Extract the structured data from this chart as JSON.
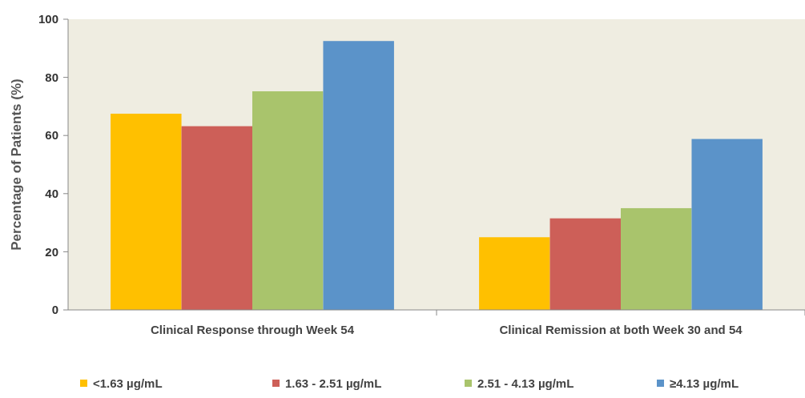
{
  "chart_data": {
    "type": "bar",
    "ylabel": "Percentage of Patients (%)",
    "categories": [
      "Clinical Response through Week 54",
      "Clinical Remission at both Week 30 and 54"
    ],
    "series": [
      {
        "name": "<1.63 µg/mL",
        "color": "#ffc000",
        "values": [
          67.5,
          25
        ]
      },
      {
        "name": "1.63 - 2.51 µg/mL",
        "color": "#cd5f58",
        "values": [
          63.2,
          31.5
        ]
      },
      {
        "name": "2.51 - 4.13 µg/mL",
        "color": "#a9c46c",
        "values": [
          75.2,
          35
        ]
      },
      {
        "name": "≥4.13 µg/mL",
        "color": "#5b93c9",
        "values": [
          92.5,
          58.8
        ]
      }
    ],
    "ylim": [
      0,
      100
    ],
    "yticks": [
      0,
      20,
      40,
      60,
      80,
      100
    ],
    "grid": false,
    "legend": "bottom"
  }
}
